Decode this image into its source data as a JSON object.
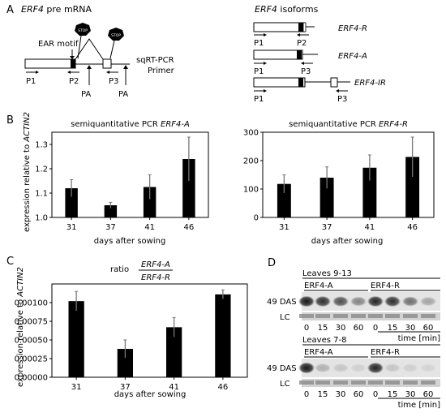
{
  "panel_labels": {
    "a": "A",
    "b": "B",
    "c": "C",
    "d": "D"
  },
  "panel_a": {
    "pre_title_gene": "ERF4",
    "pre_title_rest": " pre mRNA",
    "ear_motif": "EAR motif",
    "stop_label": "STOP",
    "primer_caption": [
      "sqRT-PCR",
      "Primer"
    ],
    "p1": "P1",
    "p2": "P2",
    "p3": "P3",
    "pa": "PA",
    "iso_title_gene": "ERF4",
    "iso_title_rest": " isoforms",
    "isoforms": [
      "ERF4-R",
      "ERF4-A",
      "ERF4-IR"
    ]
  },
  "panel_b": {
    "ylabel_prefix": "expression relative to ",
    "ylabel_gene": "ACTIN2",
    "xlabel": "days after sowing"
  },
  "panel_c": {
    "ratio_label": "ratio",
    "numerator": "ERF4-A",
    "denominator": "ERF4-R",
    "ylabel_prefix": "expression relative to ",
    "ylabel_gene": "ACTIN2",
    "xlabel": "days after sowing"
  },
  "panel_d": {
    "blocks": [
      {
        "tissue": "Leaves 9-13",
        "groups": [
          "ERF4-A",
          "ERF4-R"
        ],
        "row_labels": [
          "49 DAS",
          "LC"
        ],
        "times": [
          "0",
          "15",
          "30",
          "60",
          "0",
          "15",
          "30",
          "60"
        ],
        "time_unit": "time [min]"
      },
      {
        "tissue": "Leaves 7-8",
        "groups": [
          "ERF4-A",
          "ERF4-R"
        ],
        "row_labels": [
          "49 DAS",
          "LC"
        ],
        "times": [
          "0",
          "15",
          "30",
          "60",
          "0",
          "15",
          "30",
          "60"
        ],
        "time_unit": "time [min]"
      }
    ]
  },
  "chart_data": [
    {
      "type": "bar",
      "title_prefix": "semiquantitative PCR ",
      "title_gene": "ERF4-A",
      "categories": [
        "31",
        "37",
        "41",
        "46"
      ],
      "values": [
        1.12,
        1.05,
        1.125,
        1.24
      ],
      "errors": [
        0.035,
        0.012,
        0.05,
        0.09
      ],
      "ylim": [
        1.0,
        1.35
      ],
      "yticks": [
        "1.0",
        "1.1",
        "1.2",
        "1.3"
      ]
    },
    {
      "type": "bar",
      "title_prefix": "semiquantitative PCR ",
      "title_gene": "ERF4-R",
      "categories": [
        "31",
        "37",
        "41",
        "46"
      ],
      "values": [
        118,
        140,
        175,
        213
      ],
      "errors": [
        32,
        38,
        45,
        70
      ],
      "ylim": [
        0,
        300
      ],
      "yticks": [
        "0",
        "100",
        "200",
        "300"
      ]
    },
    {
      "type": "bar",
      "categories": [
        "31",
        "37",
        "41",
        "46"
      ],
      "values": [
        0.00102,
        0.00038,
        0.00067,
        0.00111
      ],
      "errors": [
        0.00013,
        0.00012,
        0.00013,
        6e-05
      ],
      "ylim": [
        0,
        0.00125
      ],
      "yticks": [
        "0.00000",
        "0.00025",
        "0.00050",
        "0.00075",
        "0.00100"
      ]
    }
  ]
}
